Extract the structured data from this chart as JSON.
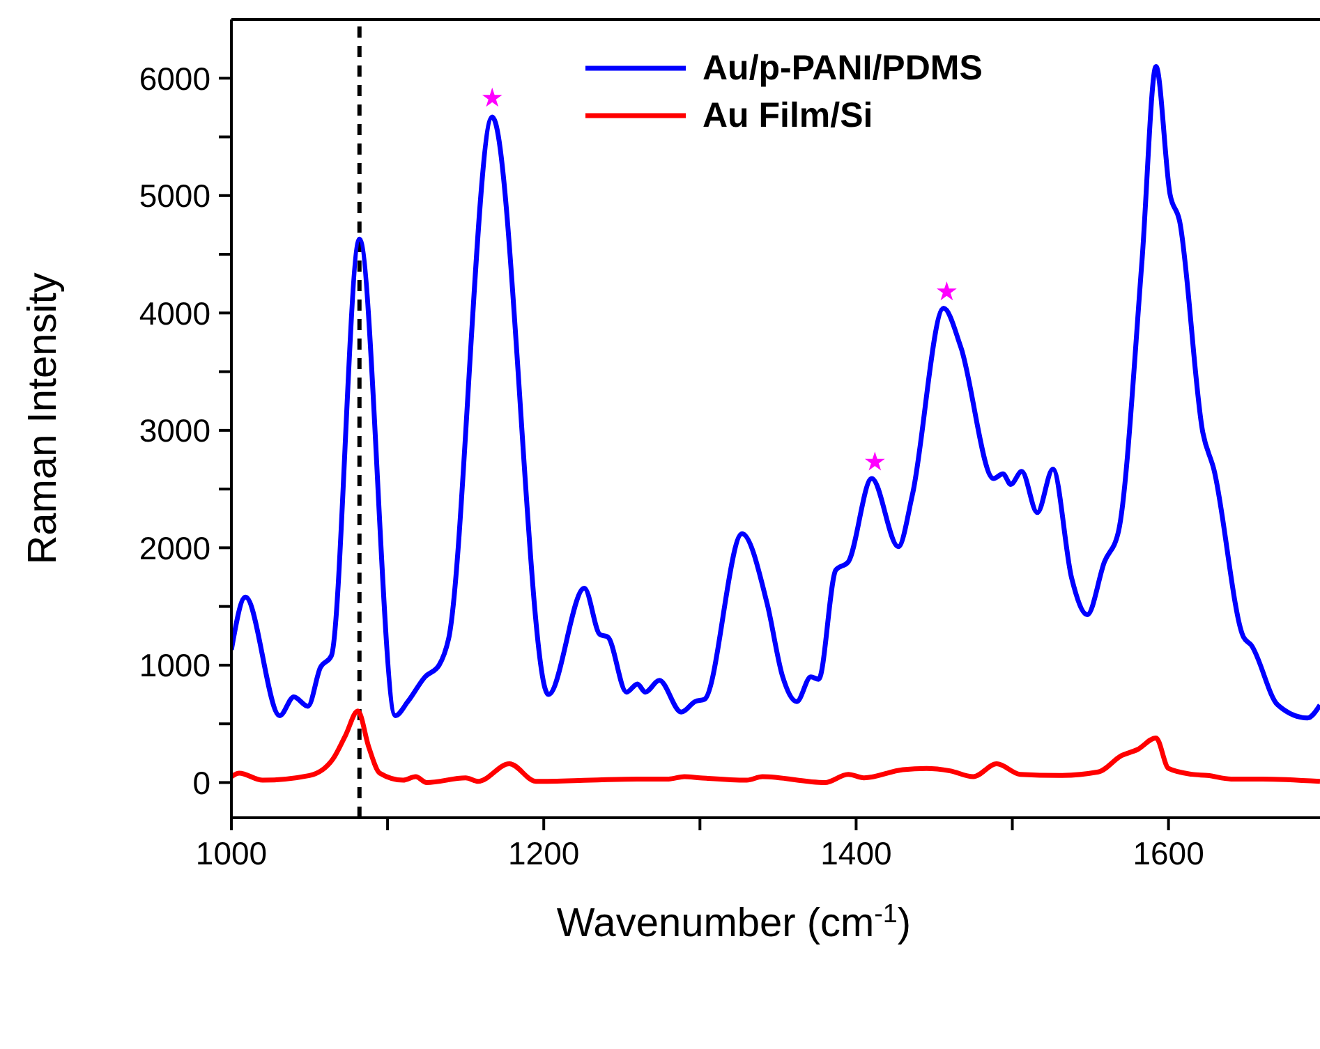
{
  "chart_data": {
    "type": "line",
    "xlabel": "Wavenumber (cm$^{-1}$)",
    "ylabel": "Raman Intensity",
    "xlim": [
      1000,
      1697
    ],
    "xticks": [
      1000,
      {
        "value": 1100,
        "label": null
      },
      1200,
      {
        "value": 1300,
        "label": null
      },
      1400,
      {
        "value": 1500,
        "label": null
      },
      1600
    ],
    "ylim": [
      -300,
      6500
    ],
    "yticks": [
      0,
      {
        "value": 500,
        "label": null
      },
      1000,
      {
        "value": 1500,
        "label": null
      },
      2000,
      {
        "value": 2500,
        "label": null
      },
      3000,
      {
        "value": 3500,
        "label": null
      },
      4000,
      {
        "value": 4500,
        "label": null
      },
      5000,
      {
        "value": 5500,
        "label": null
      },
      6000
    ],
    "grid": false,
    "legend": "top",
    "marker": "none",
    "line_style": "solid",
    "ref_lines": [
      {
        "axis": "x",
        "value": 1082,
        "color": "#000000",
        "line_style": "dashed"
      }
    ],
    "series": [
      {
        "name": "Au/p-PANI/PDMS",
        "color": "#0000ff",
        "x": [
          1000,
          1009,
          1031,
          1040,
          1049,
          1057,
          1064,
          1082,
          1105,
          1113,
          1124,
          1133,
          1139,
          1167,
          1203,
          1226,
          1236,
          1241,
          1253,
          1260,
          1265,
          1274,
          1288,
          1297,
          1303,
          1327,
          1343,
          1353,
          1362,
          1371,
          1376,
          1387,
          1395,
          1410,
          1427,
          1436,
          1456,
          1467,
          1488,
          1494,
          1499,
          1506,
          1516,
          1526,
          1538,
          1548,
          1559,
          1568,
          1583,
          1592,
          1601,
          1607,
          1622,
          1629,
          1648,
          1653,
          1670,
          1689,
          1697
        ],
        "values": [
          1130,
          1580,
          570,
          730,
          650,
          980,
          1080,
          4630,
          570,
          690,
          900,
          1000,
          1220,
          5670,
          750,
          1655,
          1260,
          1240,
          770,
          840,
          770,
          870,
          600,
          690,
          710,
          2120,
          1525,
          900,
          690,
          900,
          880,
          1810,
          1880,
          2590,
          2010,
          2450,
          4040,
          3710,
          2590,
          2630,
          2540,
          2650,
          2300,
          2670,
          1740,
          1430,
          1880,
          2140,
          4440,
          6100,
          5010,
          4790,
          2980,
          2670,
          1240,
          1170,
          660,
          550,
          660
        ]
      },
      {
        "name": "Au Film/Si",
        "color": "#ff0000",
        "x": [
          1000,
          1005,
          1020,
          1050,
          1065,
          1073,
          1081,
          1088,
          1095,
          1110,
          1118,
          1125,
          1150,
          1158,
          1178,
          1195,
          1230,
          1260,
          1280,
          1290,
          1300,
          1330,
          1340,
          1380,
          1395,
          1405,
          1430,
          1445,
          1460,
          1475,
          1490,
          1505,
          1530,
          1555,
          1570,
          1580,
          1592,
          1600,
          1615,
          1625,
          1640,
          1660,
          1697
        ],
        "values": [
          50,
          80,
          20,
          60,
          200,
          400,
          610,
          300,
          80,
          20,
          50,
          0,
          40,
          10,
          160,
          10,
          20,
          30,
          30,
          50,
          40,
          20,
          50,
          0,
          70,
          40,
          110,
          120,
          100,
          50,
          160,
          70,
          60,
          90,
          230,
          280,
          380,
          120,
          70,
          60,
          30,
          30,
          10
        ]
      },
      {
        "type": "scatter",
        "color": "#ff00ff",
        "marker": "star",
        "x": [
          1167,
          1412,
          1458
        ],
        "values": [
          5830,
          2730,
          4180
        ]
      }
    ]
  }
}
